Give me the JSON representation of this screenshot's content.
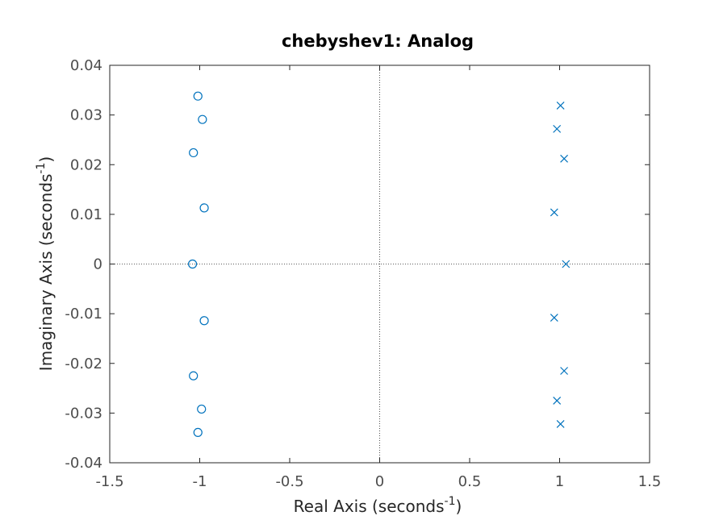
{
  "chart_data": {
    "type": "scatter",
    "title": "chebyshev1: Analog",
    "xlabel": {
      "text": "Real Axis (seconds",
      "sup": "-1",
      "close": ")"
    },
    "ylabel": {
      "text": "Imaginary Axis (seconds",
      "sup": "-1",
      "close": ")"
    },
    "xlim": [
      -1.5,
      1.5
    ],
    "ylim": [
      -0.04,
      0.04
    ],
    "xticks": [
      -1.5,
      -1,
      -0.5,
      0,
      0.5,
      1,
      1.5
    ],
    "xtick_labels": [
      "-1.5",
      "-1",
      "-0.5",
      "0",
      "0.5",
      "1",
      "1.5"
    ],
    "yticks": [
      -0.04,
      -0.03,
      -0.02,
      -0.01,
      0,
      0.01,
      0.02,
      0.03,
      0.04
    ],
    "ytick_labels": [
      "-0.04",
      "-0.03",
      "-0.02",
      "-0.01",
      "0",
      "0.01",
      "0.02",
      "0.03",
      "0.04"
    ],
    "grid": false,
    "zero_lines": true,
    "series_color": "#0072bd",
    "series": [
      {
        "marker": "o",
        "points": [
          [
            -1.01,
            0.0338
          ],
          [
            -0.985,
            0.0291
          ],
          [
            -1.035,
            0.0224
          ],
          [
            -0.975,
            0.0113
          ],
          [
            -1.04,
            0.0
          ],
          [
            -0.975,
            -0.0114
          ],
          [
            -1.035,
            -0.0225
          ],
          [
            -0.99,
            -0.0292
          ],
          [
            -1.01,
            -0.0339
          ]
        ]
      },
      {
        "marker": "x",
        "points": [
          [
            1.005,
            0.0319
          ],
          [
            0.985,
            0.0272
          ],
          [
            1.025,
            0.0212
          ],
          [
            0.97,
            0.0104
          ],
          [
            1.035,
            0.0
          ],
          [
            0.97,
            -0.0108
          ],
          [
            1.025,
            -0.0215
          ],
          [
            0.985,
            -0.0275
          ],
          [
            1.005,
            -0.0322
          ]
        ]
      }
    ]
  },
  "colors": {
    "axis_box": "#262626",
    "tick_labels": "#4d4d4d",
    "zero_line": "#262626"
  }
}
